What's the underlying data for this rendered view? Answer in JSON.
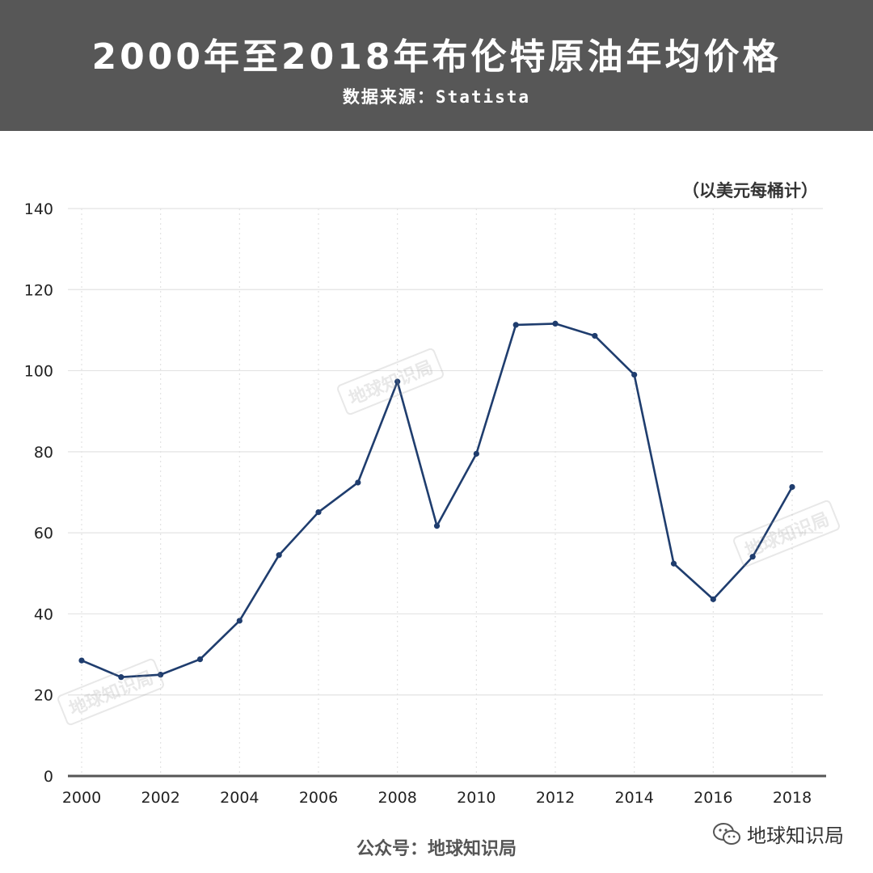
{
  "header": {
    "title": "2000年至2018年布伦特原油年均价格",
    "subtitle": "数据来源：Statista"
  },
  "unit_label": "（以美元每桶计）",
  "footer": {
    "text": "公众号：地球知识局",
    "brand": "地球知识局",
    "brand_icon": "wechat-icon"
  },
  "watermark_text": "地球知识局",
  "colors": {
    "header_bg": "#575757",
    "line": "#1f3d6e",
    "grid": "#e3e3e3",
    "axis": "#555555"
  },
  "chart_data": {
    "type": "line",
    "title": "2000年至2018年布伦特原油年均价格",
    "ylabel": "（以美元每桶计）",
    "xlabel": "",
    "x": [
      2000,
      2001,
      2002,
      2003,
      2004,
      2005,
      2006,
      2007,
      2008,
      2009,
      2010,
      2011,
      2012,
      2013,
      2014,
      2015,
      2016,
      2017,
      2018
    ],
    "series": [
      {
        "name": "",
        "values": [
          28.5,
          24.4,
          25.0,
          28.8,
          38.3,
          54.5,
          65.1,
          72.4,
          97.3,
          61.7,
          79.5,
          111.3,
          111.6,
          108.6,
          99.0,
          52.4,
          43.6,
          54.1,
          71.3
        ]
      }
    ],
    "xticks": [
      2000,
      2002,
      2004,
      2006,
      2008,
      2010,
      2012,
      2014,
      2016,
      2018
    ],
    "yticks": [
      0,
      20,
      40,
      60,
      80,
      100,
      120,
      140
    ],
    "xlim": [
      2000,
      2018
    ],
    "ylim": [
      0,
      140
    ],
    "grid": true,
    "legend": "none"
  }
}
